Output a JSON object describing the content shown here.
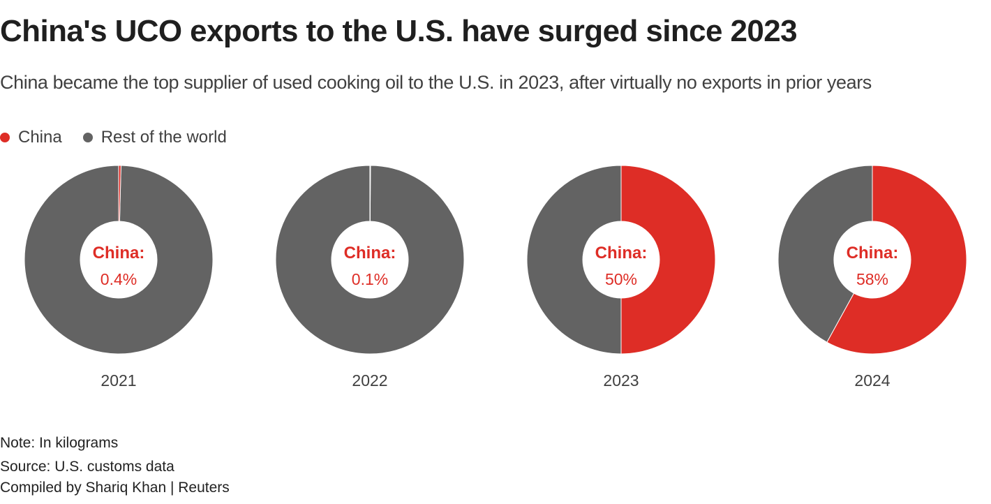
{
  "title": "China's UCO exports to the U.S. have surged since 2023",
  "subtitle": "China became the top supplier of used cooking oil to the U.S. in 2023, after virtually no exports in prior years",
  "legend": [
    {
      "label": "China",
      "color": "#de2d26"
    },
    {
      "label": "Rest of the world",
      "color": "#636363"
    }
  ],
  "chart_data": {
    "type": "pie",
    "variant": "donut",
    "series": [
      {
        "name": "China",
        "color": "#de2d26"
      },
      {
        "name": "Rest of the world",
        "color": "#636363"
      }
    ],
    "charts": [
      {
        "year": "2021",
        "china_share": 0.4,
        "center_label": "China:",
        "center_value": "0.4%"
      },
      {
        "year": "2022",
        "china_share": 0.1,
        "center_label": "China:",
        "center_value": "0.1%"
      },
      {
        "year": "2023",
        "china_share": 50,
        "center_label": "China:",
        "center_value": "50%"
      },
      {
        "year": "2024",
        "china_share": 58,
        "center_label": "China:",
        "center_value": "58%"
      }
    ],
    "unit": "percent share of U.S. used cooking oil imports"
  },
  "footer": {
    "note": "Note: In kilograms",
    "source": "Source: U.S. customs data",
    "credit": "Compiled by Shariq Khan | Reuters"
  }
}
